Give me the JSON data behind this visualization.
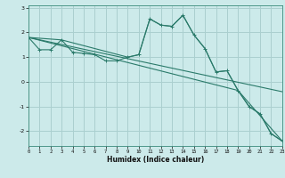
{
  "xlabel": "Humidex (Indice chaleur)",
  "bg_color": "#cceaea",
  "grid_color": "#aacfcf",
  "line_color": "#2a7a6a",
  "xlim": [
    0,
    23
  ],
  "ylim": [
    -2.6,
    3.1
  ],
  "yticks": [
    -2,
    -1,
    0,
    1,
    2,
    3
  ],
  "xticks": [
    0,
    1,
    2,
    3,
    4,
    5,
    6,
    7,
    8,
    9,
    10,
    11,
    12,
    13,
    14,
    15,
    16,
    17,
    18,
    19,
    20,
    21,
    22,
    23
  ],
  "series_main": {
    "x": [
      0,
      1,
      2,
      3,
      4,
      5,
      6,
      7,
      8,
      9,
      10,
      11,
      12,
      13,
      14,
      15,
      16,
      17,
      18,
      19,
      20,
      21,
      22,
      23
    ],
    "y": [
      1.8,
      1.3,
      1.3,
      1.7,
      1.2,
      1.15,
      1.1,
      0.85,
      0.85,
      1.0,
      1.1,
      2.55,
      2.3,
      2.25,
      2.7,
      1.9,
      1.35,
      0.4,
      0.45,
      -0.35,
      -1.0,
      -1.3,
      -2.1,
      -2.4
    ]
  },
  "series_smooth": {
    "x": [
      0,
      3,
      9,
      10,
      11,
      12,
      13,
      14,
      15,
      16,
      17,
      18,
      19,
      20,
      21,
      22,
      23
    ],
    "y": [
      1.8,
      1.7,
      1.0,
      1.1,
      2.55,
      2.3,
      2.25,
      2.7,
      1.9,
      1.35,
      0.4,
      0.45,
      -0.35,
      -1.0,
      -1.3,
      -2.1,
      -2.4
    ]
  },
  "series_line1": {
    "x": [
      0,
      23
    ],
    "y": [
      1.8,
      -0.4
    ]
  },
  "series_line2": {
    "x": [
      0,
      19,
      23
    ],
    "y": [
      1.8,
      -0.35,
      -2.4
    ]
  }
}
